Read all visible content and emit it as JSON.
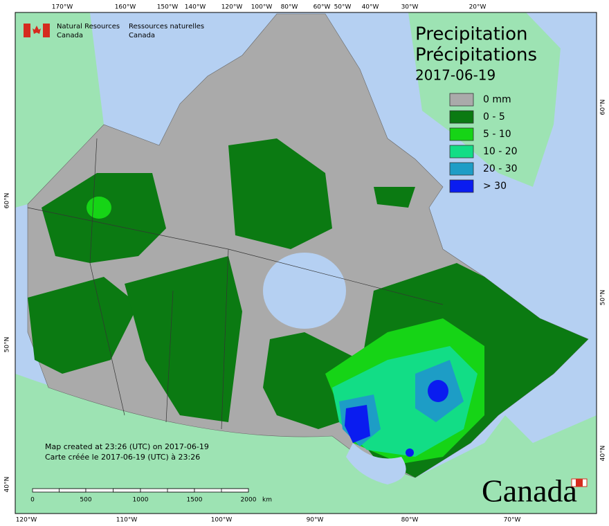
{
  "agency": {
    "en_line1": "Natural Resources",
    "en_line2": "Canada",
    "fr_line1": "Ressources naturelles",
    "fr_line2": "Canada"
  },
  "title": {
    "en": "Precipitation",
    "fr": "Précipitations",
    "date": "2017-06-19"
  },
  "legend": [
    {
      "label": "0 mm",
      "color": "#aaaaaa"
    },
    {
      "label": "0 - 5",
      "color": "#0b7a12"
    },
    {
      "label": "5 - 10",
      "color": "#16d416"
    },
    {
      "label": "10 - 20",
      "color": "#12dd86"
    },
    {
      "label": "20 - 30",
      "color": "#1d9dc6"
    },
    {
      "label": "> 30",
      "color": "#0a1cf0"
    }
  ],
  "graticule": {
    "top": [
      "170°W",
      "160°W",
      "150°W",
      "140°W",
      "120°W",
      "100°W",
      "80°W",
      "60°W",
      "50°W",
      "40°W",
      "30°W",
      "20°W"
    ],
    "bottom": [
      "120°W",
      "110°W",
      "100°W",
      "90°W",
      "80°W",
      "70°W"
    ],
    "left": [
      "60°N",
      "50°N",
      "40°N"
    ],
    "right": [
      "60°N",
      "50°N",
      "40°N"
    ]
  },
  "scale": {
    "labels": [
      "0",
      "500",
      "1000",
      "1500",
      "2000"
    ],
    "unit": "km"
  },
  "notes": [
    "Map created at 23:26 (UTC) on 2017-06-19",
    "Carte créée le 2017-06-19 (UTC) à 23:26"
  ],
  "wordmark": "Canada"
}
